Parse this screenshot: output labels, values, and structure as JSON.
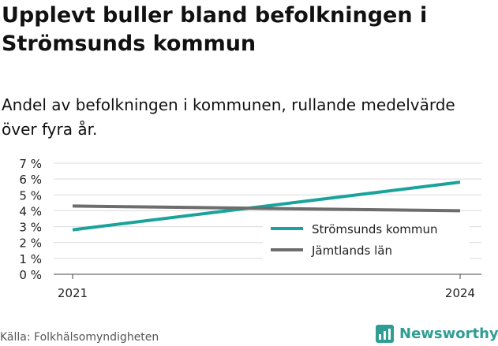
{
  "header": {
    "title": "Upplevt buller bland befolkningen i Strömsunds kommun",
    "subtitle": "Andel av befolkningen i kommunen, rullande medelvärde över fyra år."
  },
  "footer": {
    "source": "Källa: Folkhälsomyndigheten",
    "brand": "Newsworthy",
    "brand_icon": "bar-chart-logo-icon",
    "brand_color": "#2e9e94"
  },
  "chart_data": {
    "type": "line",
    "title": "Upplevt buller bland befolkningen i Strömsunds kommun",
    "subtitle": "Andel av befolkningen i kommunen, rullande medelvärde över fyra år.",
    "x": [
      "2021",
      "2024"
    ],
    "x_ticks": [
      "2021",
      "2024"
    ],
    "ylim": [
      0,
      7
    ],
    "y_ticks": [
      "0 %",
      "1 %",
      "2 %",
      "3 %",
      "4 %",
      "5 %",
      "6 %",
      "7 %"
    ],
    "grid": true,
    "legend_position": "bottom-right",
    "series": [
      {
        "name": "Strömsunds kommun",
        "color": "#1aa39b",
        "values": [
          2.8,
          5.8
        ]
      },
      {
        "name": "Jämtlands län",
        "color": "#6d6d6d",
        "values": [
          4.3,
          4.0
        ]
      }
    ]
  }
}
